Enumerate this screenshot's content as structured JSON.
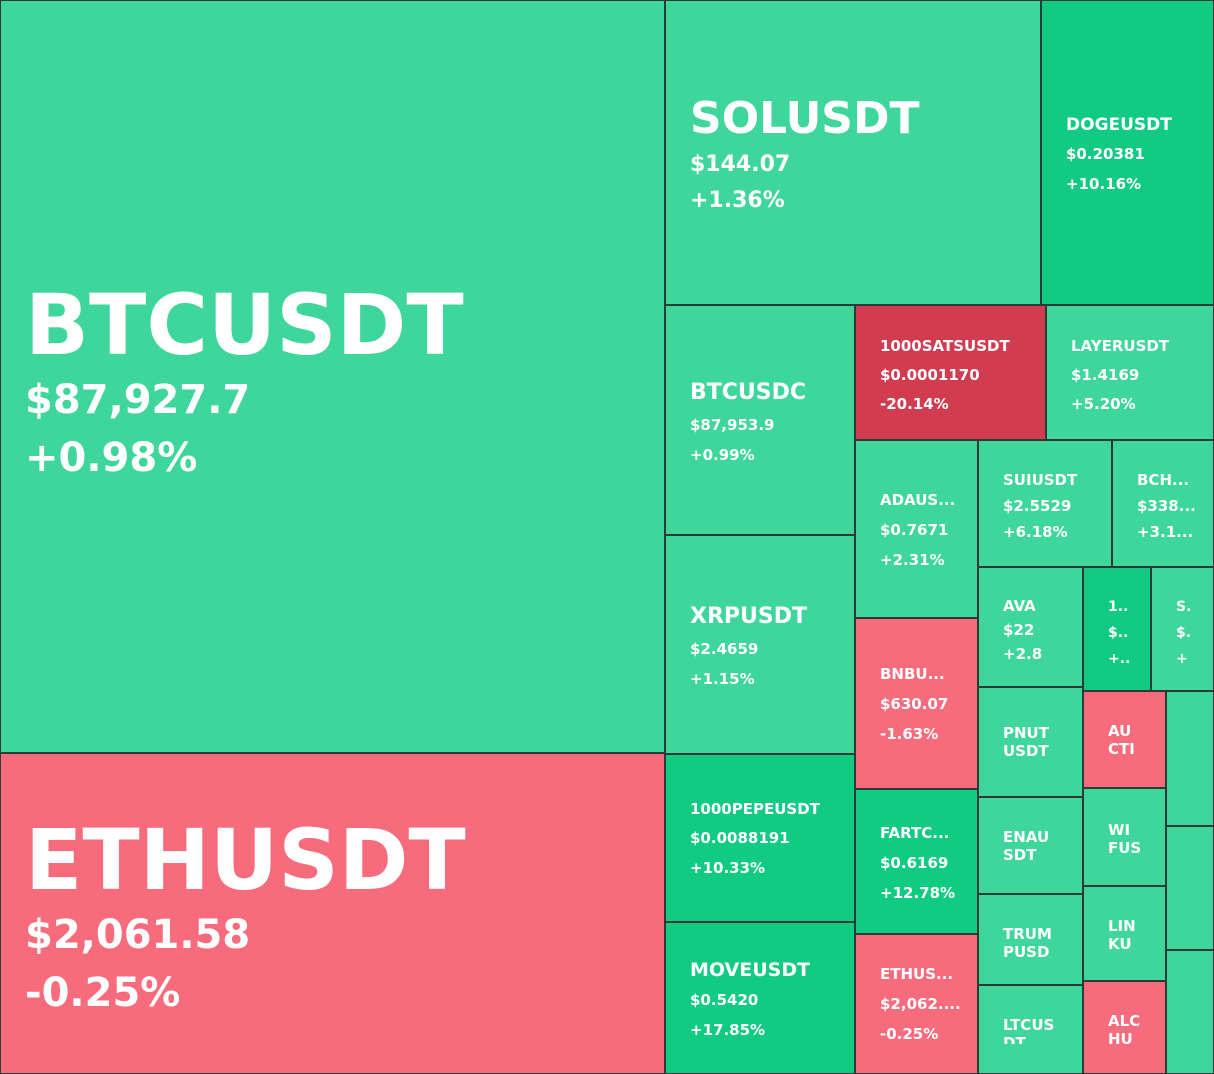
{
  "colors": {
    "up": "#3fd69c",
    "up_strong": "#12cb83",
    "down": "#f66c7d",
    "down_strong": "#d23c50",
    "text": "#ffffff"
  },
  "tiles": [
    {
      "symbol": "BTCUSDT",
      "price": "$87,927.7",
      "change": "+0.98%"
    },
    {
      "symbol": "ETHUSDT",
      "price": "$2,061.58",
      "change": "-0.25%"
    },
    {
      "symbol": "SOLUSDT",
      "price": "$144.07",
      "change": "+1.36%"
    },
    {
      "symbol": "DOGEUSDT",
      "price": "$0.20381",
      "change": "+10.16%"
    },
    {
      "symbol": "BTCUSDC",
      "price": "$87,953.9",
      "change": "+0.99%"
    },
    {
      "symbol": "1000SATSUSDT",
      "price": "$0.0001170",
      "change": "-20.14%"
    },
    {
      "symbol": "LAYERUSDT",
      "price": "$1.4169",
      "change": "+5.20%"
    },
    {
      "symbol": "ADAUS...",
      "price": "$0.7671",
      "change": "+2.31%"
    },
    {
      "symbol": "SUIUSDT",
      "price": "$2.5529",
      "change": "+6.18%"
    },
    {
      "symbol": "BCH...",
      "price": "$338...",
      "change": "+3.1..."
    },
    {
      "symbol": "XRPUSDT",
      "price": "$2.4659",
      "change": "+1.15%"
    },
    {
      "symbol": "AVA",
      "price": "$22",
      "change": "+2.8"
    },
    {
      "symbol": "1..",
      "price": "$..",
      "change": "+.."
    },
    {
      "symbol": "S.",
      "price": "$.",
      "change": "+"
    },
    {
      "symbol": "BNBU...",
      "price": "$630.07",
      "change": "-1.63%"
    },
    {
      "symbol": "PNUT USDT",
      "price": "",
      "change": ""
    },
    {
      "symbol": "AU CTI",
      "price": "",
      "change": ""
    },
    {
      "symbol": "1000PEPEUSDT",
      "price": "$0.0088191",
      "change": "+10.33%"
    },
    {
      "symbol": "FARTC...",
      "price": "$0.6169",
      "change": "+12.78%"
    },
    {
      "symbol": "ENAU SDT",
      "price": "",
      "change": ""
    },
    {
      "symbol": "WI FUS",
      "price": "",
      "change": ""
    },
    {
      "symbol": "MOVEUSDT",
      "price": "$0.5420",
      "change": "+17.85%"
    },
    {
      "symbol": "ETHUS...",
      "price": "$2,062....",
      "change": "-0.25%"
    },
    {
      "symbol": "TRUM PUSD",
      "price": "",
      "change": ""
    },
    {
      "symbol": "LIN KU",
      "price": "",
      "change": ""
    },
    {
      "symbol": "LTCUS DT",
      "price": "",
      "change": ""
    },
    {
      "symbol": "ALC HU",
      "price": "",
      "change": ""
    },
    {
      "symbol": "",
      "price": "",
      "change": ""
    },
    {
      "symbol": "",
      "price": "",
      "change": ""
    },
    {
      "symbol": "",
      "price": "",
      "change": ""
    },
    {
      "symbol": "",
      "price": "",
      "change": ""
    }
  ]
}
